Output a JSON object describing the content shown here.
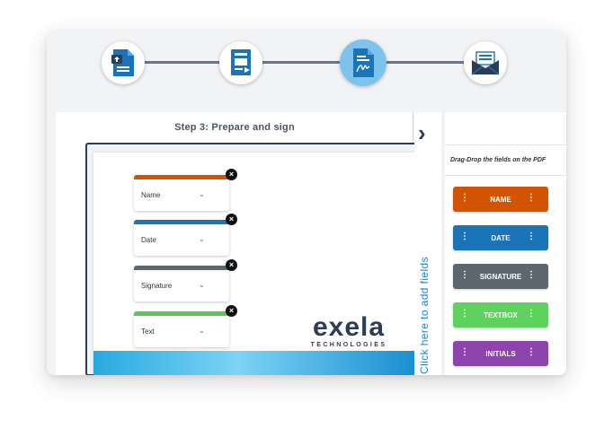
{
  "stepper": {
    "steps": [
      {
        "icon": "upload-document-icon",
        "active": false
      },
      {
        "icon": "document-edit-icon",
        "active": false
      },
      {
        "icon": "signed-document-icon",
        "active": true
      },
      {
        "icon": "send-mail-icon",
        "active": false
      }
    ]
  },
  "main": {
    "title": "Step 3: Prepare and sign",
    "fields": [
      {
        "label": "Name",
        "color": "#d35400"
      },
      {
        "label": "Date",
        "color": "#1b74b8"
      },
      {
        "label": "Signature",
        "color": "#5d6770"
      },
      {
        "label": "Text",
        "color": "#5dc45d"
      }
    ],
    "logo": {
      "word": "exela",
      "sub": "TECHNOLOGIES"
    }
  },
  "drawer": {
    "toggle_text": "Click here to add fields"
  },
  "sidepanel": {
    "hint": "Drag-Drop the fields on the PDF",
    "buttons": [
      {
        "label": "NAME",
        "color": "#d35400"
      },
      {
        "label": "DATE",
        "color": "#1b74b8"
      },
      {
        "label": "SIGNATURE",
        "color": "#5d6770"
      },
      {
        "label": "TEXTBOX",
        "color": "#5dd25d"
      },
      {
        "label": "INITIALS",
        "color": "#8e44ad"
      }
    ]
  }
}
